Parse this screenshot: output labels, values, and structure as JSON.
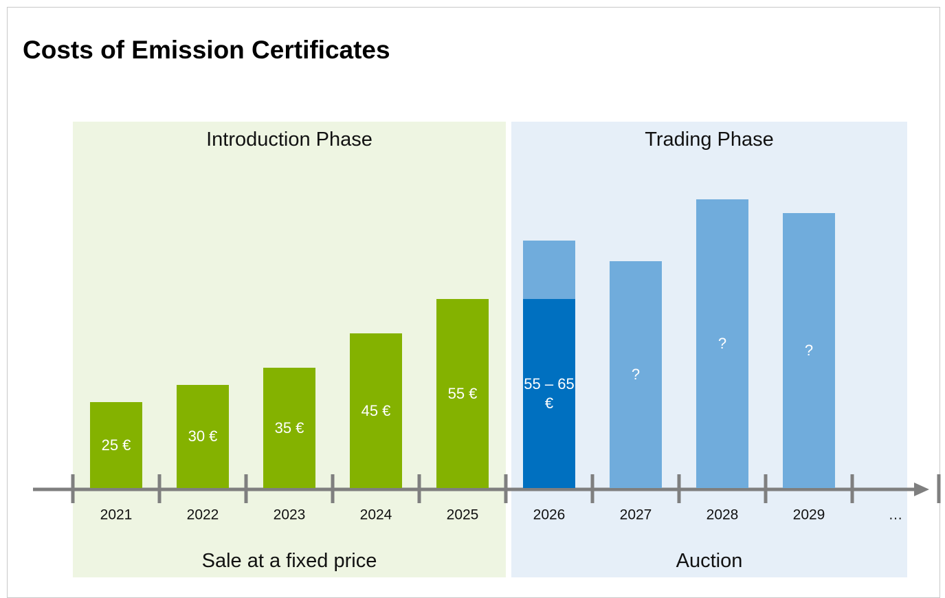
{
  "chart_data": {
    "type": "bar",
    "title": "Costs of Emission Certificates",
    "phases": [
      {
        "title": "Introduction Phase",
        "caption": "Sale at a fixed price"
      },
      {
        "title": "Trading Phase",
        "caption": "Auction"
      }
    ],
    "categories": [
      "2021",
      "2022",
      "2023",
      "2024",
      "2025",
      "2026",
      "2027",
      "2028",
      "2029",
      "…"
    ],
    "series": [
      {
        "color": [
          "#84b200",
          "#84b200",
          "#84b200",
          "#84b200",
          "#84b200",
          "#0070c0",
          null,
          null,
          null,
          null
        ],
        "values": [
          25,
          30,
          35,
          45,
          55,
          55,
          null,
          null,
          null,
          null
        ]
      },
      {
        "color": "#70acdc",
        "values": [
          null,
          null,
          null,
          null,
          null,
          17,
          66,
          84,
          80,
          null
        ]
      }
    ],
    "bar_labels": [
      "25 €",
      "30 €",
      "35 €",
      "45 €",
      "55 €",
      "55 – 65 €",
      "?",
      "?",
      "?",
      null
    ]
  }
}
